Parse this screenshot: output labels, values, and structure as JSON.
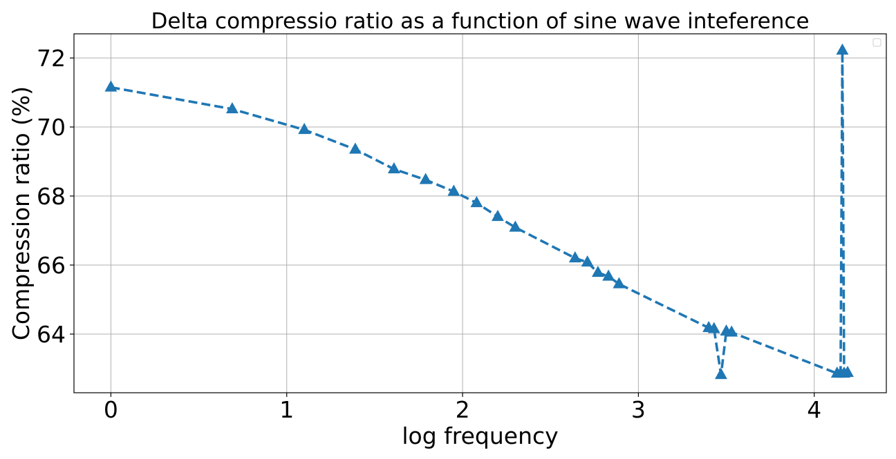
{
  "chart_data": {
    "type": "line",
    "title": "Delta compressio ratio as a function of sine wave inteference",
    "xlabel": "log frequency",
    "ylabel": "Compression ratio (%)",
    "xlim": [
      -0.21,
      4.41
    ],
    "ylim": [
      62.3,
      72.7
    ],
    "xticks": [
      0,
      1,
      2,
      3,
      4
    ],
    "yticks": [
      64,
      66,
      68,
      70,
      72
    ],
    "grid": true,
    "legend": "top-right (empty)",
    "marker": "triangle-up",
    "linestyle": "dashed",
    "series": [
      {
        "color": "#1f77b4",
        "x": [
          0.0,
          0.69,
          1.1,
          1.39,
          1.61,
          1.79,
          1.95,
          2.08,
          2.2,
          2.3,
          2.64,
          2.71,
          2.77,
          2.83,
          2.89,
          3.4,
          3.43,
          3.47,
          3.5,
          3.53,
          4.13,
          4.15,
          4.16,
          4.17,
          4.19
        ],
        "y": [
          71.15,
          70.52,
          69.92,
          69.35,
          68.78,
          68.47,
          68.13,
          67.8,
          67.4,
          67.09,
          66.2,
          66.08,
          65.78,
          65.67,
          65.45,
          64.18,
          64.15,
          62.82,
          64.08,
          64.05,
          62.86,
          62.86,
          72.22,
          62.86,
          62.88
        ]
      }
    ]
  }
}
